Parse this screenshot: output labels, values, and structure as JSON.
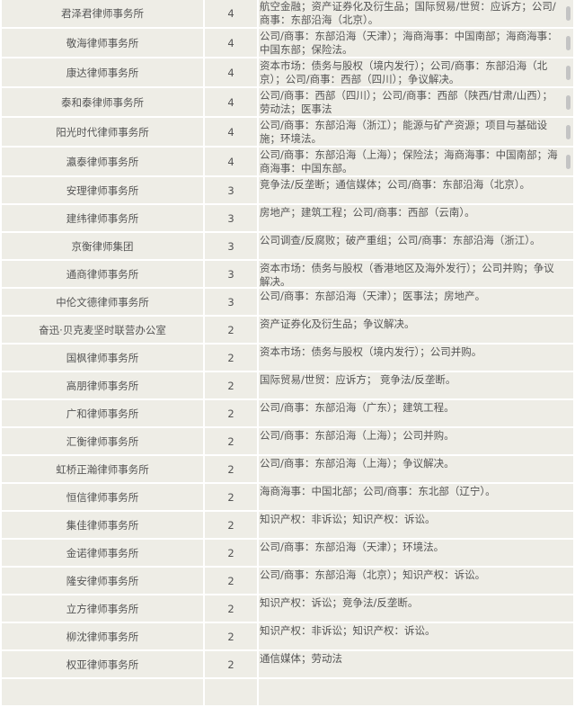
{
  "rows": [
    {
      "firm": "君泽君律师事务所",
      "count": "4",
      "areas": "航空金融；资产证券化及衍生品；国际贸易/世贸：应诉方；公司/商事：东部沿海（北京）。",
      "scroll": true
    },
    {
      "firm": "敬海律师事务所",
      "count": "4",
      "areas": "公司/商事：东部沿海（天津）；海商海事：中国南部；海商海事：中国东部；保险法。",
      "scroll": true
    },
    {
      "firm": "康达律师事务所",
      "count": "4",
      "areas": "资本市场：债务与股权（境内发行）；公司/商事：东部沿海（北京）；公司/商事：西部（四川）；争议解决。",
      "scroll": true
    },
    {
      "firm": "泰和泰律师事务所",
      "count": "4",
      "areas": "公司/商事：西部（四川）；公司/商事：西部（陕西/甘肃/山西）；劳动法；医事法",
      "scroll": true
    },
    {
      "firm": "阳光时代律师事务所",
      "count": "4",
      "areas": "公司/商事：东部沿海（浙江）；能源与矿产资源；项目与基础设施；环境法。",
      "scroll": true
    },
    {
      "firm": "瀛泰律师事务所",
      "count": "4",
      "areas": "公司/商事：东部沿海（上海）；保险法；海商海事：中国南部；海商海事：中国东部。",
      "scroll": true
    },
    {
      "firm": "安理律师事务所",
      "count": "3",
      "areas": "竞争法/反垄断；通信媒体；公司/商事：东部沿海（北京）。"
    },
    {
      "firm": "建纬律师事务所",
      "count": "3",
      "areas": "房地产；建筑工程；公司/商事：西部（云南）。"
    },
    {
      "firm": "京衡律师集团",
      "count": "3",
      "areas": "公司调查/反腐败；破产重组；公司/商事：东部沿海（浙江）。"
    },
    {
      "firm": "通商律师事务所",
      "count": "3",
      "areas": "资本市场：债务与股权（香港地区及海外发行）；公司并购；争议解决。"
    },
    {
      "firm": "中伦文德律师事务所",
      "count": "3",
      "areas": "公司/商事：东部沿海（天津）；医事法；房地产。"
    },
    {
      "firm": "奋迅·贝克麦坚时联营办公室",
      "count": "2",
      "areas": "资产证券化及衍生品；争议解决。"
    },
    {
      "firm": "国枫律师事务所",
      "count": "2",
      "areas": "资本市场：债务与股权（境内发行）；公司并购。"
    },
    {
      "firm": "高朋律师事务所",
      "count": "2",
      "areas": "国际贸易/世贸：应诉方； 竞争法/反垄断。"
    },
    {
      "firm": "广和律师事务所",
      "count": "2",
      "areas": "公司/商事：东部沿海（广东）；建筑工程。"
    },
    {
      "firm": "汇衡律师事务所",
      "count": "2",
      "areas": "公司/商事：东部沿海（上海）；公司并购。"
    },
    {
      "firm": "虹桥正瀚律师事务所",
      "count": "2",
      "areas": "公司/商事：东部沿海（上海）；争议解决。"
    },
    {
      "firm": "恒信律师事务所",
      "count": "2",
      "areas": "海商海事：中国北部；公司/商事：东北部（辽宁）。"
    },
    {
      "firm": "集佳律师事务所",
      "count": "2",
      "areas": "知识产权：非诉讼；知识产权：诉讼。"
    },
    {
      "firm": "金诺律师事务所",
      "count": "2",
      "areas": "公司/商事：东部沿海（天津）；环境法。"
    },
    {
      "firm": "隆安律师事务所",
      "count": "2",
      "areas": "公司/商事：东部沿海（北京）；知识产权：诉讼。"
    },
    {
      "firm": "立方律师事务所",
      "count": "2",
      "areas": "知识产权：诉讼；竞争法/反垄断。"
    },
    {
      "firm": "柳沈律师事务所",
      "count": "2",
      "areas": "知识产权：非诉讼；知识产权：诉讼。"
    },
    {
      "firm": "权亚律师事务所",
      "count": "2",
      "areas": "通信媒体；劳动法"
    },
    {
      "firm": "",
      "count": "",
      "areas": ""
    }
  ]
}
